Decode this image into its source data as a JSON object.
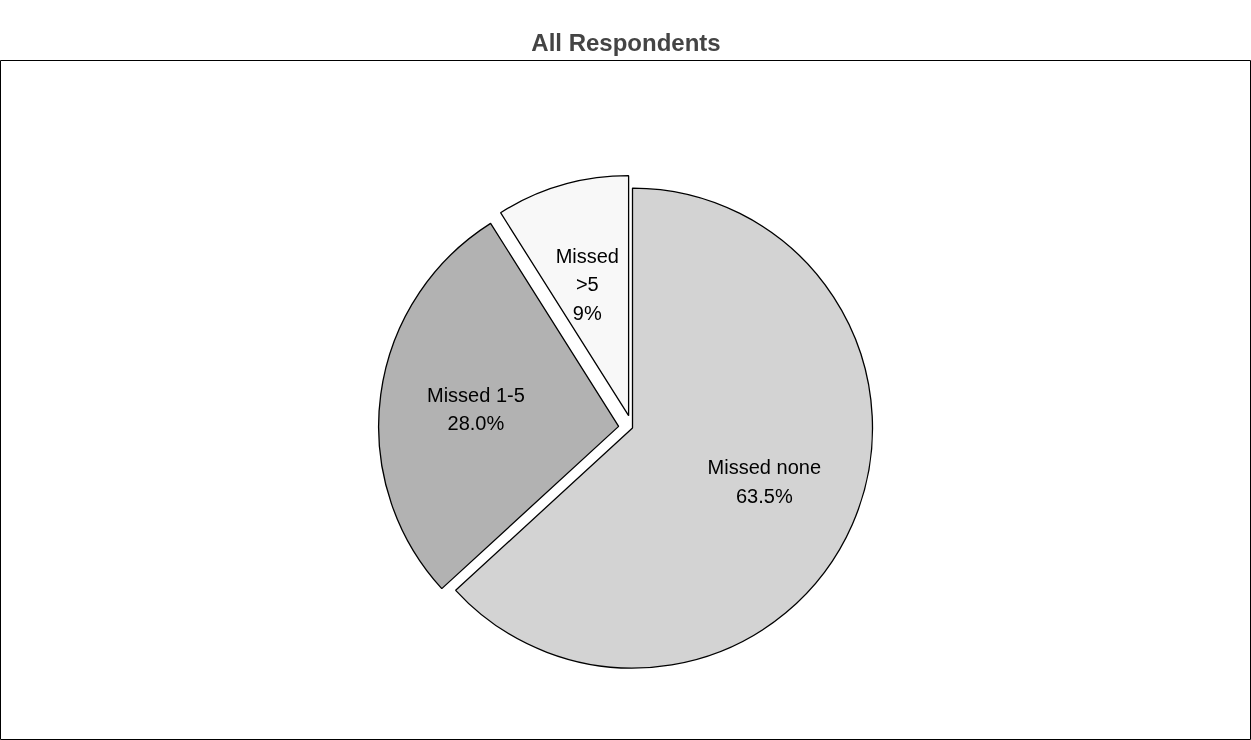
{
  "chart_data": {
    "type": "pie",
    "title": "All Respondents",
    "categories": [
      "Missed none",
      "Missed 1-5",
      "Missed >5"
    ],
    "values": [
      63.5,
      28.0,
      9
    ],
    "value_labels": [
      "63.5%",
      "28.0%",
      "9%"
    ],
    "colors": [
      "#d3d3d3",
      "#b2b2b2",
      "#f8f8f8"
    ],
    "legend": false
  }
}
